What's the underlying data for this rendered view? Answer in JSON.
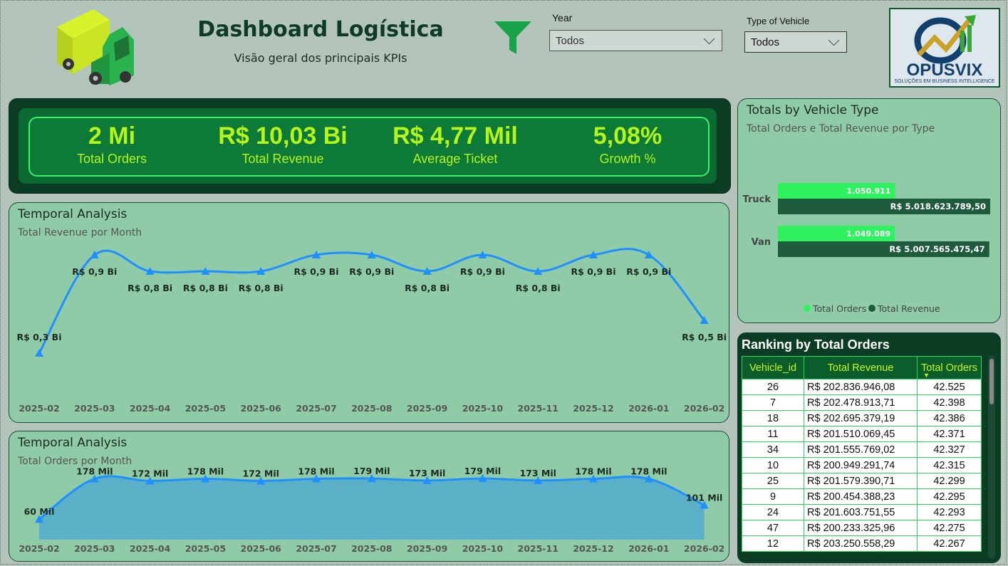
{
  "header": {
    "title": "Dashboard Logística",
    "subtitle": "Visão geral dos principais KPIs"
  },
  "filters": {
    "year": {
      "label": "Year",
      "value": "Todos"
    },
    "vehicle_type": {
      "label": "Type of Vehicle",
      "value": "Todos"
    }
  },
  "logo": {
    "name": "OPUSVIX",
    "tagline": "SOLUÇÕES EM BUSINESS INTELLIGENCE"
  },
  "kpis": [
    {
      "value": "2 Mi",
      "label": "Total Orders"
    },
    {
      "value": "R$ 10,03 Bi",
      "label": "Total Revenue"
    },
    {
      "value": "R$ 4,77 Mil",
      "label": "Average Ticket"
    },
    {
      "value": "5,08%",
      "label": "Growth %"
    }
  ],
  "revenue_panel": {
    "title": "Temporal Analysis",
    "subtitle": "Total Revenue por Month"
  },
  "orders_panel": {
    "title": "Temporal Analysis",
    "subtitle": "Total Orders por Month"
  },
  "vehicle_panel": {
    "title": "Totals by Vehicle Type",
    "subtitle": "Total Orders e Total Revenue por Type"
  },
  "ranking": {
    "title": "Ranking by Total Orders",
    "columns": [
      "Vehicle_id",
      "Total Revenue",
      "Total Orders"
    ],
    "rows": [
      [
        "26",
        "R$  202.836.946,08",
        "42.525"
      ],
      [
        "7",
        "R$  202.478.913,71",
        "42.398"
      ],
      [
        "18",
        "R$  202.695.379,19",
        "42.386"
      ],
      [
        "11",
        "R$  201.510.069,45",
        "42.371"
      ],
      [
        "34",
        "R$  201.555.769,02",
        "42.327"
      ],
      [
        "10",
        "R$  200.949.291,74",
        "42.315"
      ],
      [
        "25",
        "R$  201.579.390,71",
        "42.299"
      ],
      [
        "9",
        "R$  200.454.388,23",
        "42.295"
      ],
      [
        "24",
        "R$  201.603.751,55",
        "42.293"
      ],
      [
        "47",
        "R$  200.233.325,96",
        "42.275"
      ],
      [
        "12",
        "R$  203.250.558,29",
        "42.267"
      ]
    ]
  },
  "chart_data": [
    {
      "type": "line",
      "title": "Temporal Analysis",
      "subtitle": "Total Revenue por Month",
      "x": [
        "2025-02",
        "2025-03",
        "2025-04",
        "2025-05",
        "2025-06",
        "2025-07",
        "2025-08",
        "2025-09",
        "2025-10",
        "2025-11",
        "2025-12",
        "2026-01",
        "2026-02"
      ],
      "values": [
        0.3,
        0.9,
        0.8,
        0.8,
        0.8,
        0.9,
        0.9,
        0.8,
        0.9,
        0.8,
        0.9,
        0.9,
        0.5
      ],
      "value_labels": [
        "R$ 0,3 Bi",
        "R$ 0,9 Bi",
        "R$ 0,8 Bi",
        "R$ 0,8 Bi",
        "R$ 0,8 Bi",
        "R$ 0,9 Bi",
        "R$ 0,9 Bi",
        "R$ 0,8 Bi",
        "R$ 0,9 Bi",
        "R$ 0,8 Bi",
        "R$ 0,9 Bi",
        "R$ 0,9 Bi",
        "R$ 0,5 Bi"
      ],
      "color": "#1e90ff"
    },
    {
      "type": "area",
      "title": "Temporal Analysis",
      "subtitle": "Total Orders por Month",
      "x": [
        "2025-02",
        "2025-03",
        "2025-04",
        "2025-05",
        "2025-06",
        "2025-07",
        "2025-08",
        "2025-09",
        "2025-10",
        "2025-11",
        "2025-12",
        "2026-01",
        "2026-02"
      ],
      "values": [
        60,
        178,
        172,
        178,
        172,
        178,
        179,
        173,
        179,
        173,
        178,
        178,
        101
      ],
      "value_labels": [
        "60 Mil",
        "178 Mil",
        "172 Mil",
        "178 Mil",
        "172 Mil",
        "178 Mil",
        "179 Mil",
        "173 Mil",
        "179 Mil",
        "173 Mil",
        "178 Mil",
        "178 Mil",
        "101 Mil"
      ],
      "color": "#1e90ff",
      "fill": "#5bb0c8"
    },
    {
      "type": "bar",
      "orientation": "horizontal",
      "title": "Totals by Vehicle Type",
      "categories": [
        "Truck",
        "Van"
      ],
      "series": [
        {
          "name": "Total Orders",
          "values": [
            1050911,
            1049089
          ],
          "labels": [
            "1.050.911",
            "1.049.089"
          ],
          "color": "#2ef35e"
        },
        {
          "name": "Total Revenue",
          "values": [
            5018623789.5,
            5007565475.47
          ],
          "labels": [
            "R$ 5.018.623.789,50",
            "R$ 5.007.565.475,47"
          ],
          "color": "#1e5a3c"
        }
      ],
      "legend": "bottom"
    }
  ]
}
